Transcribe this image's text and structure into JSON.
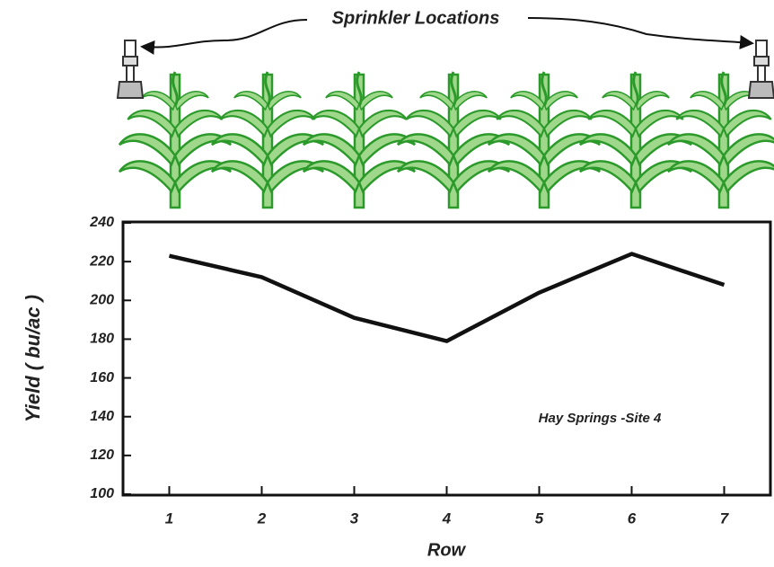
{
  "chart_data": {
    "type": "line",
    "title": "Sprinkler Locations",
    "x_label": "Row",
    "y_label": "Yield ( bu/ac )",
    "annotation": "Hay Springs -Site 4",
    "x": [
      1,
      2,
      3,
      4,
      5,
      6,
      7
    ],
    "values": [
      223,
      212,
      191,
      179,
      204,
      224,
      208
    ],
    "color": "#111111",
    "xlim": [
      0.5,
      7.5
    ],
    "xticks": [
      1,
      2,
      3,
      4,
      5,
      6,
      7
    ],
    "ylim": [
      100,
      240
    ],
    "yticks": [
      100,
      120,
      140,
      160,
      180,
      200,
      220,
      240
    ]
  }
}
